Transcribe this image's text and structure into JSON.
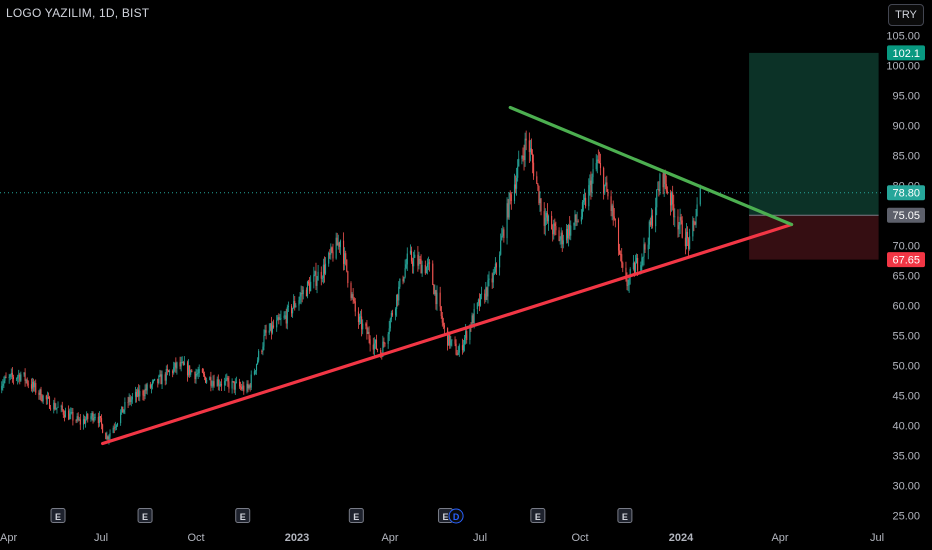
{
  "header": {
    "title": "LOGO YAZILIM, 1D, BIST",
    "currency_button": "TRY"
  },
  "colors": {
    "background": "#000000",
    "candle_up": "#26a69a",
    "candle_down": "#ef5350",
    "support_line": "#f23645",
    "resistance_line": "#4caf50",
    "target_zone": "#0e3b2e",
    "stop_zone": "#3b1014",
    "axis_text": "#b2b5be"
  },
  "chart_data": {
    "type": "candlestick",
    "price_axis": {
      "ticks": [
        "105.00",
        "100.00",
        "95.00",
        "90.00",
        "85.00",
        "80.00",
        "75.00",
        "70.00",
        "65.00",
        "60.00",
        "55.00",
        "50.00",
        "45.00",
        "40.00",
        "35.00",
        "30.00",
        "25.00"
      ],
      "ylim": [
        23.5,
        106
      ]
    },
    "time_axis": {
      "labels": [
        "Apr",
        "Jul",
        "Oct",
        "2023",
        "Apr",
        "Jul",
        "Oct",
        "2024",
        "Apr",
        "Jul"
      ]
    },
    "price_labels": [
      {
        "value": 102.1,
        "text": "102.1",
        "kind": "target"
      },
      {
        "value": 78.8,
        "text": "78.80",
        "kind": "last"
      },
      {
        "value": 75.05,
        "text": "75.05",
        "kind": "entry"
      },
      {
        "value": 67.65,
        "text": "67.65",
        "kind": "stop"
      }
    ],
    "trendlines": [
      {
        "name": "support",
        "from": {
          "date": "2022-07-01",
          "price": 37
        },
        "to": {
          "date": "2024-04-10",
          "price": 73.5
        }
      },
      {
        "name": "resistance",
        "from": {
          "date": "2023-07-20",
          "price": 93
        },
        "to": {
          "date": "2024-04-10",
          "price": 73.5
        }
      }
    ],
    "position": {
      "start": "2024-03-01",
      "end": "2024-07-01",
      "entry": 75.05,
      "target": 102.1,
      "stop": 67.65
    },
    "events": [
      {
        "date": "2022-05-20",
        "text": "E"
      },
      {
        "date": "2022-08-10",
        "text": "E"
      },
      {
        "date": "2022-11-10",
        "text": "E"
      },
      {
        "date": "2023-02-25",
        "text": "E"
      },
      {
        "date": "2023-05-20",
        "text": "E"
      },
      {
        "date": "2023-05-30",
        "text": "D"
      },
      {
        "date": "2023-08-15",
        "text": "E"
      },
      {
        "date": "2023-11-05",
        "text": "E"
      }
    ],
    "anchors": [
      [
        "2022-03-25",
        47
      ],
      [
        "2022-04-15",
        48.5
      ],
      [
        "2022-05-10",
        44
      ],
      [
        "2022-06-10",
        40.5
      ],
      [
        "2022-06-25",
        42
      ],
      [
        "2022-07-05",
        38
      ],
      [
        "2022-07-25",
        44
      ],
      [
        "2022-08-20",
        47
      ],
      [
        "2022-09-10",
        50
      ],
      [
        "2022-10-05",
        48
      ],
      [
        "2022-10-25",
        47
      ],
      [
        "2022-11-15",
        46
      ],
      [
        "2022-12-01",
        55
      ],
      [
        "2022-12-20",
        58
      ],
      [
        "2023-01-05",
        62
      ],
      [
        "2023-01-25",
        66
      ],
      [
        "2023-02-10",
        71
      ],
      [
        "2023-02-25",
        58
      ],
      [
        "2023-03-20",
        52
      ],
      [
        "2023-04-05",
        62
      ],
      [
        "2023-04-15",
        68
      ],
      [
        "2023-05-05",
        66
      ],
      [
        "2023-05-20",
        55
      ],
      [
        "2023-06-01",
        52
      ],
      [
        "2023-06-20",
        60
      ],
      [
        "2023-07-05",
        65
      ],
      [
        "2023-07-20",
        78
      ],
      [
        "2023-08-05",
        88
      ],
      [
        "2023-08-20",
        75
      ],
      [
        "2023-09-05",
        71
      ],
      [
        "2023-09-25",
        75
      ],
      [
        "2023-10-10",
        84
      ],
      [
        "2023-10-25",
        75
      ],
      [
        "2023-11-05",
        63
      ],
      [
        "2023-11-25",
        70
      ],
      [
        "2023-12-10",
        82
      ],
      [
        "2023-12-25",
        74
      ],
      [
        "2024-01-05",
        70
      ],
      [
        "2024-01-15",
        78.8
      ]
    ]
  }
}
